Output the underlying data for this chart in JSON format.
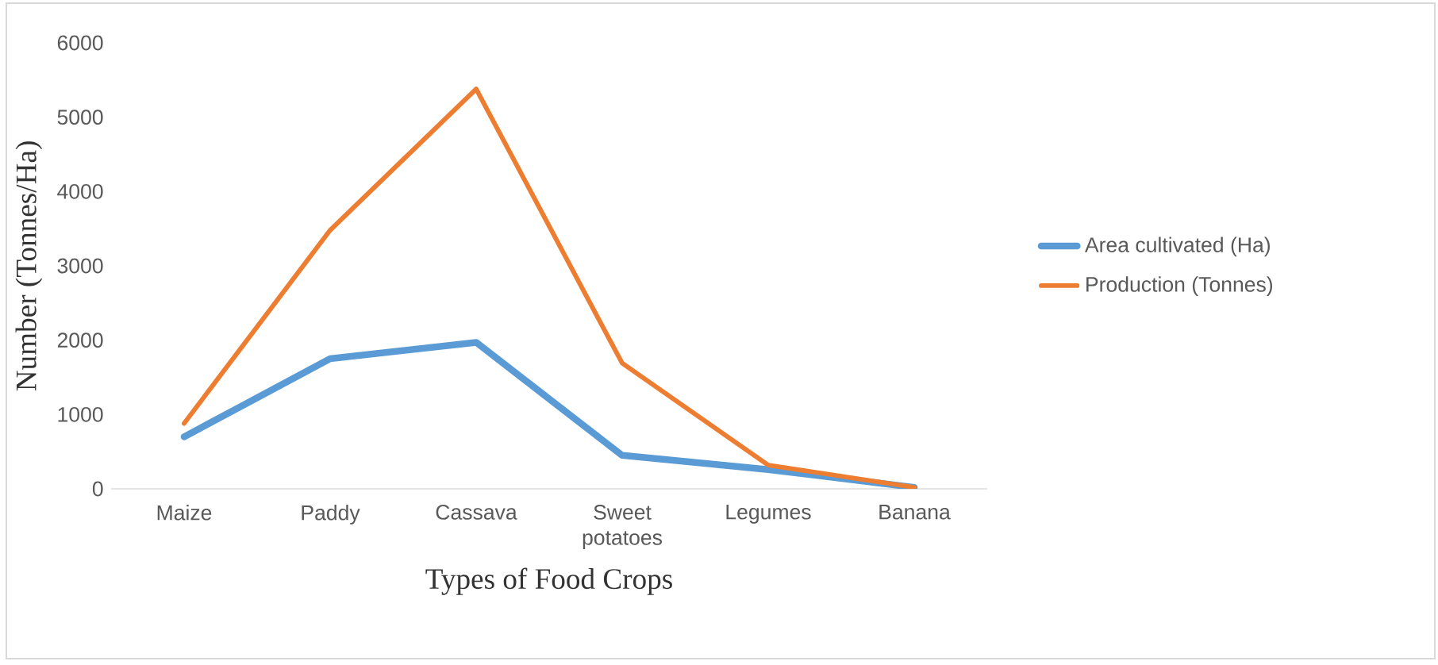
{
  "chart_data": {
    "type": "line",
    "xlabel": "Types of Food Crops",
    "ylabel": "Number (Tonnes/Ha)",
    "categories": [
      "Maize",
      "Paddy",
      "Cassava",
      "Sweet potatoes",
      "Legumes",
      "Banana"
    ],
    "series": [
      {
        "name": "Area cultivated (Ha)",
        "color": "#5b9bd5",
        "values": [
          700,
          1750,
          1970,
          450,
          260,
          20
        ]
      },
      {
        "name": "Production  (Tonnes)",
        "color": "#ed7d31",
        "values": [
          880,
          3480,
          5380,
          1690,
          320,
          20
        ]
      }
    ],
    "ylim": [
      0,
      6000
    ],
    "yticks": [
      0,
      1000,
      2000,
      3000,
      4000,
      5000,
      6000
    ],
    "grid": false,
    "legend": "right",
    "marker": "none",
    "line_style": "solid"
  }
}
